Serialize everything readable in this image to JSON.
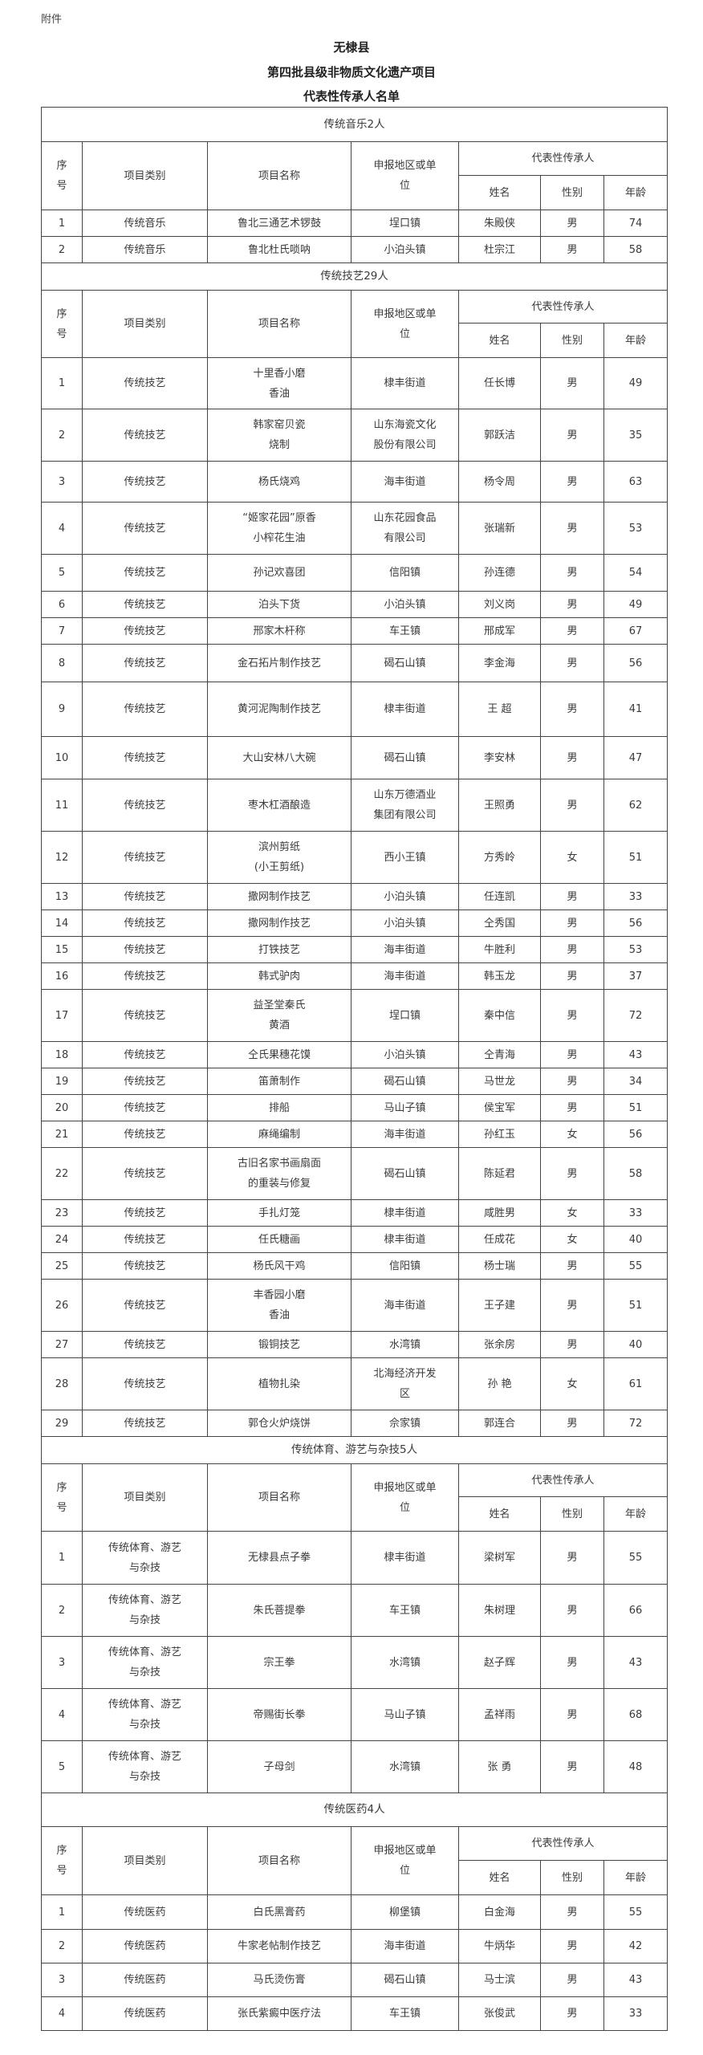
{
  "attachment_label": "附件",
  "title_lines": [
    "无棣县",
    "第四批县级非物质文化遗产项目",
    "代表性传承人名单"
  ],
  "header": {
    "no": "序\n号",
    "category": "项目类别",
    "project": "项目名称",
    "place": "申报地区或单\n位",
    "inheritor": "代表性传承人",
    "name": "姓名",
    "gender": "性别",
    "age": "年龄"
  },
  "sections": [
    {
      "title": "传统音乐2人",
      "rows": [
        [
          "1",
          "传统音乐",
          "鲁北三通艺术锣鼓",
          "埕口镇",
          "朱殿侠",
          "男",
          "74"
        ],
        [
          "2",
          "传统音乐",
          "鲁北杜氏唢呐",
          "小泊头镇",
          "杜宗江",
          "男",
          "58"
        ]
      ]
    },
    {
      "title": "传统技艺29人",
      "rows": [
        [
          "1",
          "传统技艺",
          "十里香小磨\n香油",
          "棣丰街道",
          "任长博",
          "男",
          "49"
        ],
        [
          "2",
          "传统技艺",
          "韩家窑贝瓷\n烧制",
          "山东海瓷文化\n股份有限公司",
          "郭跃洁",
          "男",
          "35"
        ],
        [
          "3",
          "传统技艺",
          "杨氏烧鸡",
          "海丰街道",
          "杨令周",
          "男",
          "63"
        ],
        [
          "4",
          "传统技艺",
          "“姬家花园”原香\n小榨花生油",
          "山东花园食品\n有限公司",
          "张瑞新",
          "男",
          "53"
        ],
        [
          "5",
          "传统技艺",
          "孙记欢喜团",
          "信阳镇",
          "孙连德",
          "男",
          "54"
        ],
        [
          "6",
          "传统技艺",
          "泊头下货",
          "小泊头镇",
          "刘义岗",
          "男",
          "49"
        ],
        [
          "7",
          "传统技艺",
          "邢家木杆称",
          "车王镇",
          "邢成军",
          "男",
          "67"
        ],
        [
          "8",
          "传统技艺",
          "金石拓片制作技艺",
          "碣石山镇",
          "李金海",
          "男",
          "56"
        ],
        [
          "9",
          "传统技艺",
          "黄河泥陶制作技艺",
          "棣丰街道",
          "王  超",
          "男",
          "41"
        ],
        [
          "10",
          "传统技艺",
          "大山安林八大碗",
          "碣石山镇",
          "李安林",
          "男",
          "47"
        ],
        [
          "11",
          "传统技艺",
          "枣木杠酒酿造",
          "山东万德酒业\n集团有限公司",
          "王照勇",
          "男",
          "62"
        ],
        [
          "12",
          "传统技艺",
          "滨州剪纸\n(小王剪纸)",
          "西小王镇",
          "方秀岭",
          "女",
          "51"
        ],
        [
          "13",
          "传统技艺",
          "撒网制作技艺",
          "小泊头镇",
          "任连凯",
          "男",
          "33"
        ],
        [
          "14",
          "传统技艺",
          "撒网制作技艺",
          "小泊头镇",
          "仝秀国",
          "男",
          "56"
        ],
        [
          "15",
          "传统技艺",
          "打铁技艺",
          "海丰街道",
          "牛胜利",
          "男",
          "53"
        ],
        [
          "16",
          "传统技艺",
          "韩式驴肉",
          "海丰街道",
          "韩玉龙",
          "男",
          "37"
        ],
        [
          "17",
          "传统技艺",
          "益圣堂秦氏\n黄酒",
          "埕口镇",
          "秦中信",
          "男",
          "72"
        ],
        [
          "18",
          "传统技艺",
          "仝氏果穗花馍",
          "小泊头镇",
          "仝青海",
          "男",
          "43"
        ],
        [
          "19",
          "传统技艺",
          "笛萧制作",
          "碣石山镇",
          "马世龙",
          "男",
          "34"
        ],
        [
          "20",
          "传统技艺",
          "排船",
          "马山子镇",
          "侯宝军",
          "男",
          "51"
        ],
        [
          "21",
          "传统技艺",
          "麻绳编制",
          "海丰街道",
          "孙红玉",
          "女",
          "56"
        ],
        [
          "22",
          "传统技艺",
          "古旧名家书画扇面\n的重装与修复",
          "碣石山镇",
          "陈延君",
          "男",
          "58"
        ],
        [
          "23",
          "传统技艺",
          "手扎灯笼",
          "棣丰街道",
          "咸胜男",
          "女",
          "33"
        ],
        [
          "24",
          "传统技艺",
          "任氏糖画",
          "棣丰街道",
          "任成花",
          "女",
          "40"
        ],
        [
          "25",
          "传统技艺",
          "杨氏风干鸡",
          "信阳镇",
          "杨士瑞",
          "男",
          "55"
        ],
        [
          "26",
          "传统技艺",
          "丰香园小磨\n香油",
          "海丰街道",
          "王子建",
          "男",
          "51"
        ],
        [
          "27",
          "传统技艺",
          "锻铜技艺",
          "水湾镇",
          "张余房",
          "男",
          "40"
        ],
        [
          "28",
          "传统技艺",
          "植物扎染",
          "北海经济开发\n区",
          "孙  艳",
          "女",
          "61"
        ],
        [
          "29",
          "传统技艺",
          "郭仓火炉烧饼",
          "佘家镇",
          "郭连合",
          "男",
          "72"
        ]
      ]
    },
    {
      "title": "传统体育、游艺与杂技5人",
      "rows": [
        [
          "1",
          "传统体育、游艺\n与杂技",
          "无棣县点子拳",
          "棣丰街道",
          "梁树军",
          "男",
          "55"
        ],
        [
          "2",
          "传统体育、游艺\n与杂技",
          "朱氏菩提拳",
          "车王镇",
          "朱树理",
          "男",
          "66"
        ],
        [
          "3",
          "传统体育、游艺\n与杂技",
          "宗王拳",
          "水湾镇",
          "赵子辉",
          "男",
          "43"
        ],
        [
          "4",
          "传统体育、游艺\n与杂技",
          "帝赐街长拳",
          "马山子镇",
          "孟祥雨",
          "男",
          "68"
        ],
        [
          "5",
          "传统体育、游艺\n与杂技",
          "子母剑",
          "水湾镇",
          "张  勇",
          "男",
          "48"
        ]
      ]
    },
    {
      "title": "传统医药4人",
      "rows": [
        [
          "1",
          "传统医药",
          "白氏黑膏药",
          "柳堡镇",
          "白金海",
          "男",
          "55"
        ],
        [
          "2",
          "传统医药",
          "牛家老帖制作技艺",
          "海丰街道",
          "牛炳华",
          "男",
          "42"
        ],
        [
          "3",
          "传统医药",
          "马氏烫伤膏",
          "碣石山镇",
          "马士滨",
          "男",
          "43"
        ],
        [
          "4",
          "传统医药",
          "张氏紫癜中医疗法",
          "车王镇",
          "张俊武",
          "男",
          "33"
        ]
      ]
    }
  ]
}
